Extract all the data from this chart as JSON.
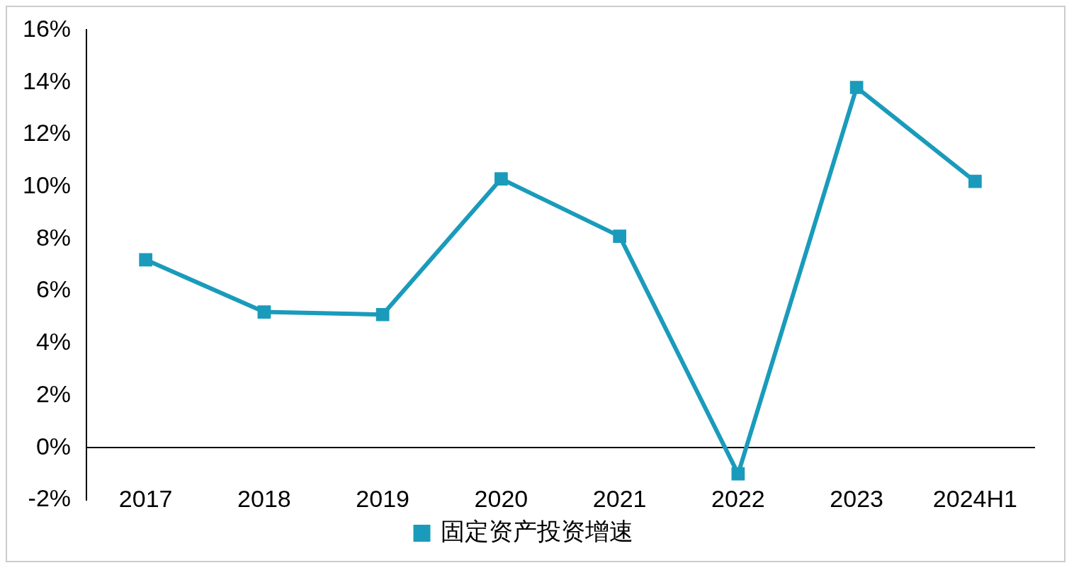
{
  "chart_data": {
    "type": "line",
    "categories": [
      "2017",
      "2018",
      "2019",
      "2020",
      "2021",
      "2022",
      "2023",
      "2024H1"
    ],
    "series": [
      {
        "name": "固定资产投资增速",
        "color": "#1a9bbb",
        "values": [
          7.2,
          5.2,
          5.1,
          10.3,
          8.1,
          -1.0,
          13.8,
          10.2
        ]
      }
    ],
    "ylim": [
      -2,
      16
    ],
    "yticks": [
      {
        "value": -2,
        "label": "-2%"
      },
      {
        "value": 0,
        "label": "0%"
      },
      {
        "value": 2,
        "label": "2%"
      },
      {
        "value": 4,
        "label": "4%"
      },
      {
        "value": 6,
        "label": "6%"
      },
      {
        "value": 8,
        "label": "8%"
      },
      {
        "value": 10,
        "label": "10%"
      },
      {
        "value": 12,
        "label": "12%"
      },
      {
        "value": 14,
        "label": "14%"
      },
      {
        "value": 16,
        "label": "16%"
      }
    ],
    "grid": false,
    "legend": "bottom",
    "marker": "square",
    "line_style": "solid"
  }
}
